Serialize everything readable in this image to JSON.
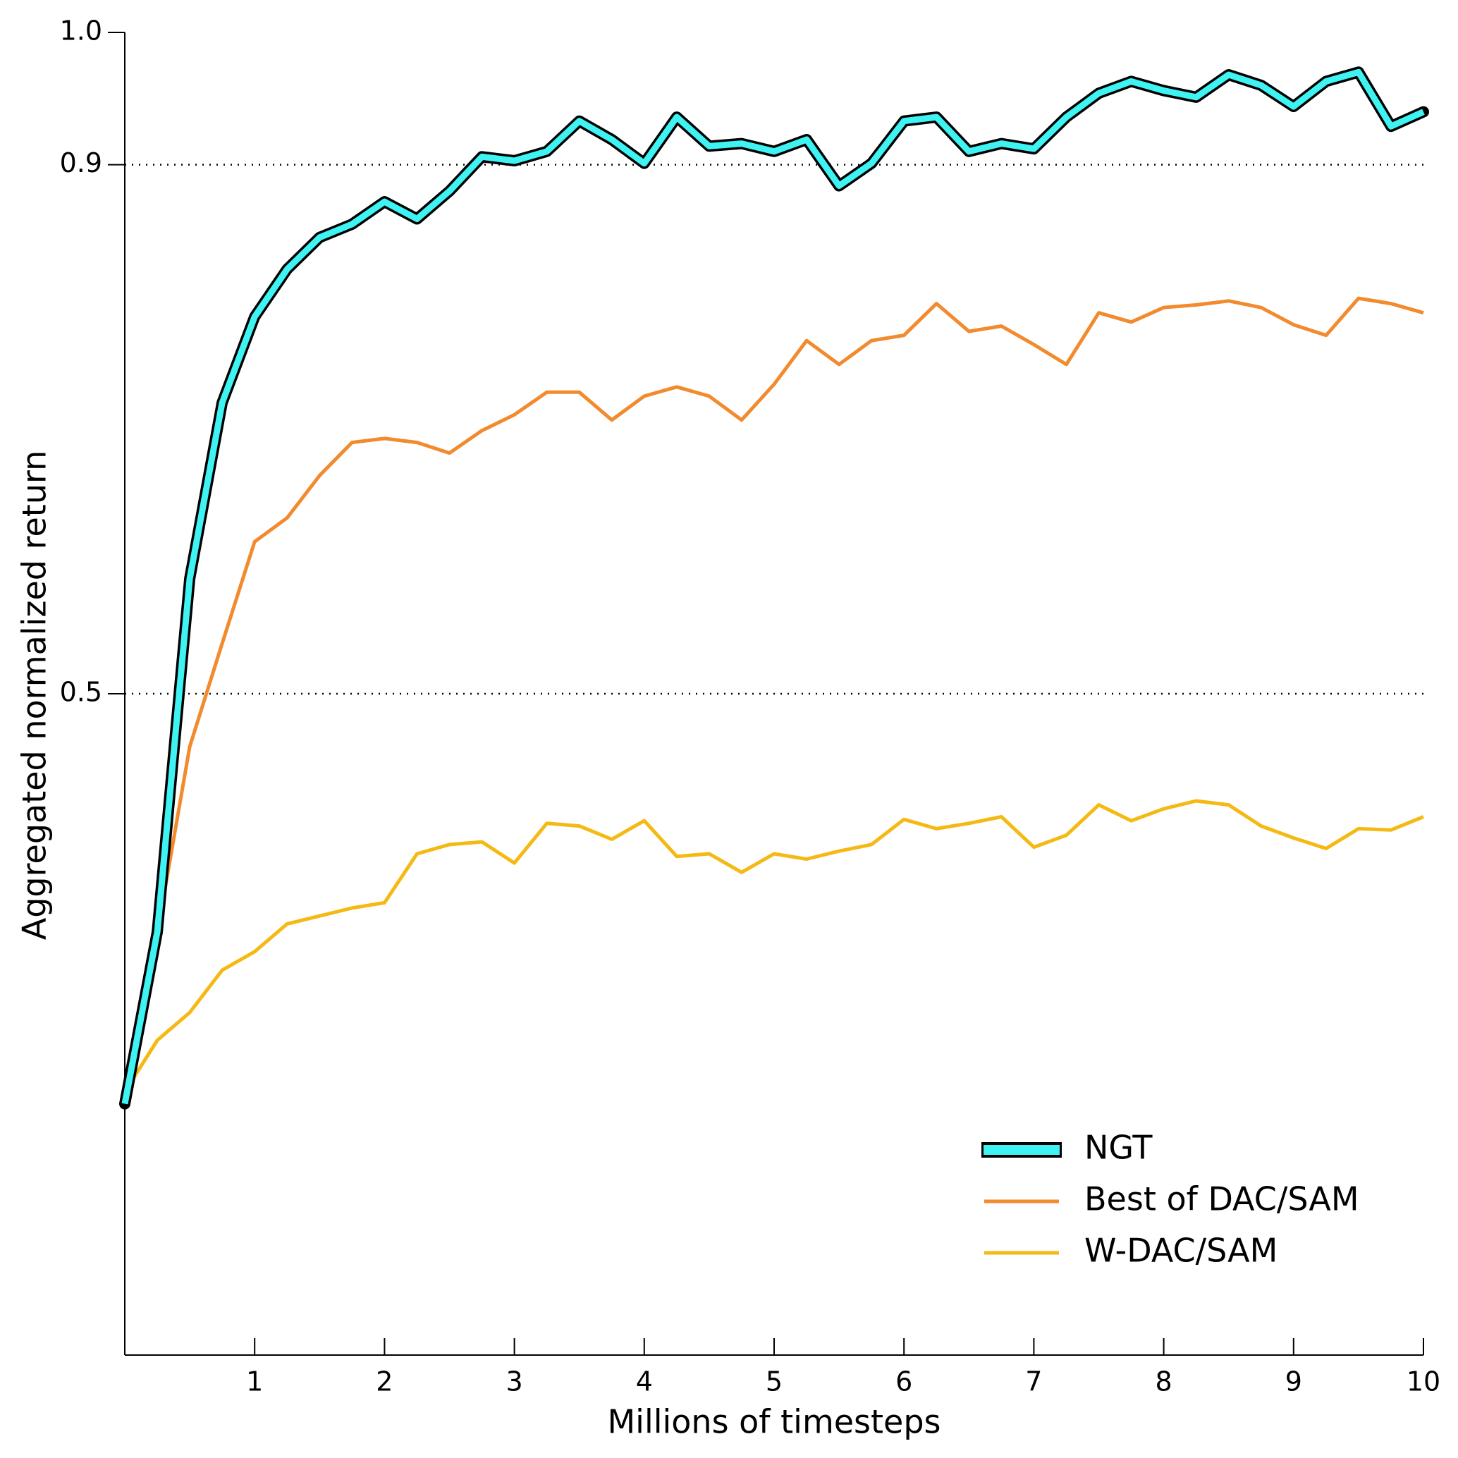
{
  "chart_data": {
    "type": "line",
    "xlabel": "Millions of timesteps",
    "ylabel": "Aggregated normalized return",
    "x": [
      0,
      0.25,
      0.5,
      0.75,
      1,
      1.25,
      1.5,
      1.75,
      2,
      2.25,
      2.5,
      2.75,
      3,
      3.25,
      3.5,
      3.75,
      4,
      4.25,
      4.5,
      4.75,
      5,
      5.25,
      5.5,
      5.75,
      6,
      6.25,
      6.5,
      6.75,
      7,
      7.25,
      7.5,
      7.75,
      8,
      8.25,
      8.5,
      8.75,
      9,
      9.25,
      9.5,
      9.75,
      10
    ],
    "series": [
      {
        "name": "NGT",
        "color": "#3ff3f3",
        "outline": "#000000",
        "values": [
          0.19,
          0.32,
          0.587,
          0.72,
          0.785,
          0.821,
          0.845,
          0.855,
          0.872,
          0.859,
          0.88,
          0.906,
          0.903,
          0.91,
          0.933,
          0.919,
          0.901,
          0.936,
          0.914,
          0.916,
          0.91,
          0.919,
          0.884,
          0.901,
          0.933,
          0.936,
          0.91,
          0.916,
          0.912,
          0.936,
          0.954,
          0.963,
          0.956,
          0.951,
          0.968,
          0.96,
          0.944,
          0.963,
          0.97,
          0.929,
          0.94
        ]
      },
      {
        "name": "Best of DAC/SAM",
        "color": "#f28a2e",
        "values": [
          0.206,
          0.319,
          0.46,
          0.538,
          0.615,
          0.633,
          0.665,
          0.69,
          0.693,
          0.69,
          0.682,
          0.699,
          0.711,
          0.728,
          0.728,
          0.707,
          0.725,
          0.732,
          0.725,
          0.707,
          0.734,
          0.767,
          0.749,
          0.767,
          0.771,
          0.795,
          0.774,
          0.778,
          0.764,
          0.749,
          0.788,
          0.781,
          0.792,
          0.794,
          0.797,
          0.792,
          0.779,
          0.771,
          0.799,
          0.795,
          0.788
        ]
      },
      {
        "name": "W-DAC/SAM",
        "color": "#f5b914",
        "values": [
          0.199,
          0.238,
          0.259,
          0.291,
          0.305,
          0.326,
          0.332,
          0.338,
          0.342,
          0.379,
          0.386,
          0.388,
          0.372,
          0.402,
          0.4,
          0.39,
          0.404,
          0.377,
          0.379,
          0.365,
          0.379,
          0.375,
          0.381,
          0.386,
          0.405,
          0.398,
          0.402,
          0.407,
          0.384,
          0.393,
          0.416,
          0.404,
          0.413,
          0.419,
          0.416,
          0.4,
          0.391,
          0.383,
          0.398,
          0.397,
          0.407
        ]
      }
    ],
    "xlim": [
      0,
      10
    ],
    "xticks": [
      1,
      2,
      3,
      4,
      5,
      6,
      7,
      8,
      9,
      10
    ],
    "ylim": [
      0,
      1
    ],
    "yticks": [
      0.5,
      0.9,
      {
        "value": 1,
        "label": "1.0"
      }
    ],
    "reference_lines": [
      0.5,
      0.9
    ],
    "legend": "lower right"
  }
}
